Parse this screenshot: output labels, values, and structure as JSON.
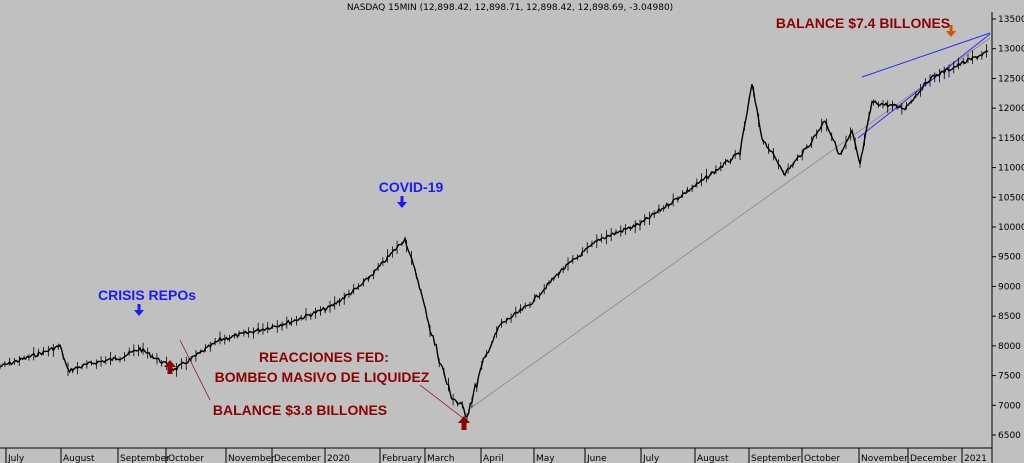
{
  "chart_data": {
    "type": "line",
    "title": "NASDAQ 15MIN (12,898.42, 12,898.71, 12,898.42, 12,898.69, -3.04980)",
    "ylim": [
      6400,
      13650
    ],
    "y_axis_side": "right",
    "grid": false,
    "y_ticks": [
      6500,
      7000,
      7500,
      8000,
      8500,
      9000,
      9500,
      10000,
      10500,
      11000,
      11500,
      12000,
      12500,
      13000,
      13500
    ],
    "x_tick_labels": [
      "July",
      "August",
      "September",
      "October",
      "November",
      "December",
      "2020",
      "February",
      "March",
      "April",
      "May",
      "June",
      "July",
      "August",
      "September",
      "October",
      "November",
      "December",
      "2021"
    ],
    "series": [
      {
        "x": [
          "Jul 2019",
          "Jul 2019",
          "Aug 2019",
          "Aug 2019",
          "Aug 2019",
          "Sep 2019",
          "Sep 2019",
          "Oct 2019",
          "Oct 2019",
          "Nov 2019",
          "Dec 2019",
          "Jan 2020",
          "Jan 2020",
          "Feb 2020",
          "Feb 2020",
          "Mar 2020",
          "Mar 2020",
          "Mar 2020",
          "Mar 2020",
          "Apr 2020",
          "Apr 2020",
          "May 2020",
          "May 2020",
          "Jun 2020",
          "Jun 2020",
          "Jul 2020",
          "Aug 2020",
          "Sep 2020",
          "Sep 2020",
          "Sep 2020",
          "Oct 2020",
          "Oct 2020",
          "Oct 2020",
          "Nov 2020",
          "Nov 2020",
          "Nov 2020",
          "Dec 2020",
          "Dec 2020",
          "Jan 2021",
          "Jan 2021"
        ],
        "values": [
          7650,
          7900,
          8000,
          7580,
          7700,
          7800,
          7950,
          7750,
          7600,
          8100,
          8400,
          8650,
          9000,
          9250,
          9800,
          9100,
          8300,
          7200,
          6850,
          7800,
          8350,
          8700,
          9250,
          9800,
          10050,
          10750,
          11250,
          12400,
          11500,
          10900,
          11400,
          11800,
          11200,
          11600,
          11050,
          12100,
          12000,
          12500,
          12800,
          12950
        ]
      }
    ],
    "trendlines": [
      {
        "from": [
          "Mar 2020",
          6800
        ],
        "to": [
          "Jan 2021",
          12700
        ],
        "color": "#888888"
      },
      {
        "from": [
          "Nov 2020",
          11000
        ],
        "to": [
          "Jan 2021",
          13200
        ],
        "color": "#2a2aff"
      },
      {
        "from": [
          "Nov 2020",
          12250
        ],
        "to": [
          "Jan 2021",
          13250
        ],
        "color": "#2a2aff"
      }
    ],
    "annotations": [
      {
        "text": "CRISIS REPOs",
        "color": "#1a1aff"
      },
      {
        "text": "COVID-19",
        "color": "#1a1aff"
      },
      {
        "text": "REACCIONES  FED:",
        "color": "#8b0000"
      },
      {
        "text": "BOMBEO MASIVO DE LIQUIDEZ",
        "color": "#8b0000"
      },
      {
        "text": "BALANCE $3.8 BILLONES",
        "color": "#8b0000"
      },
      {
        "text": "BALANCE $7.4 BILLONES",
        "color": "#8b0000"
      }
    ],
    "colors": {
      "background": "#c0c0c0",
      "price": "#000000",
      "blue_annotation": "#1a1aff",
      "red_annotation": "#8b0000",
      "arrow_red": "#8b0000",
      "arrow_blue": "#1a1aff"
    }
  }
}
